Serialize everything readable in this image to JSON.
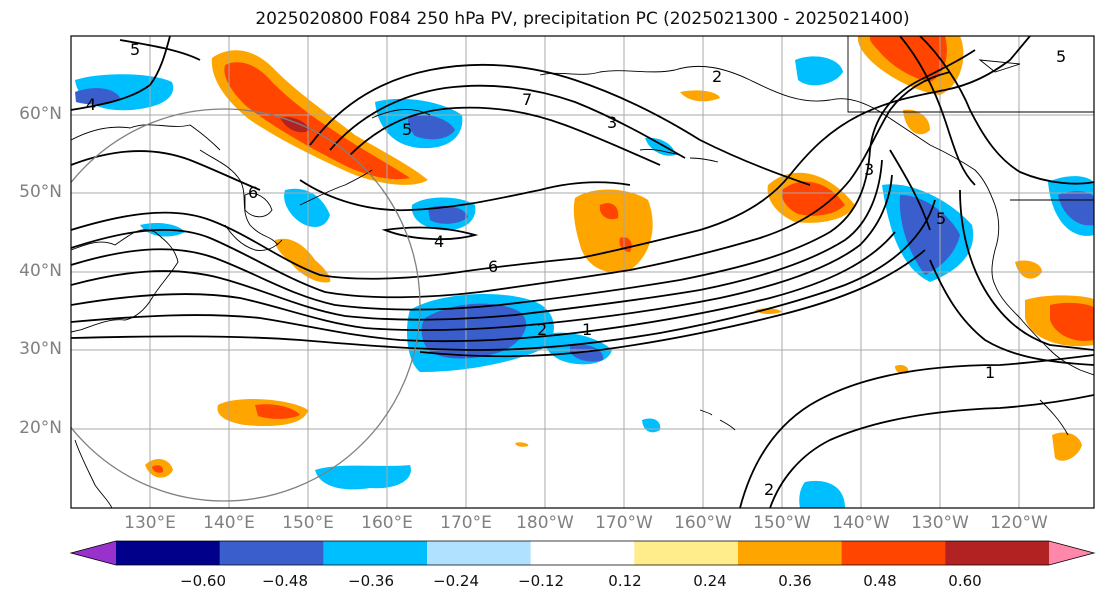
{
  "title": "2025020800 F084 250 hPa PV, precipitation PC (2025021300 - 2025021400)",
  "map": {
    "lat_labels": [
      "60°N",
      "50°N",
      "40°N",
      "30°N",
      "20°N"
    ],
    "lon_labels": [
      "130°E",
      "140°E",
      "150°E",
      "160°E",
      "170°E",
      "180°W",
      "170°W",
      "160°W",
      "150°W",
      "140°W",
      "130°W",
      "120°W"
    ],
    "contour_labels": [
      "5",
      "4",
      "6",
      "7",
      "5",
      "3",
      "2",
      "4",
      "6",
      "2",
      "1",
      "3",
      "1",
      "5",
      "5",
      "2"
    ]
  },
  "colorbar": {
    "ticks": [
      "−0.60",
      "−0.48",
      "−0.36",
      "−0.24",
      "−0.12",
      "0.12",
      "0.24",
      "0.36",
      "0.48",
      "0.60"
    ],
    "colors": [
      "#9932cc",
      "#00008b",
      "#3a5fcd",
      "#00bfff",
      "#b0e2ff",
      "#ffffff",
      "#ffec8b",
      "#ffa500",
      "#ff4500",
      "#b22222",
      "#ff88aa"
    ]
  }
}
